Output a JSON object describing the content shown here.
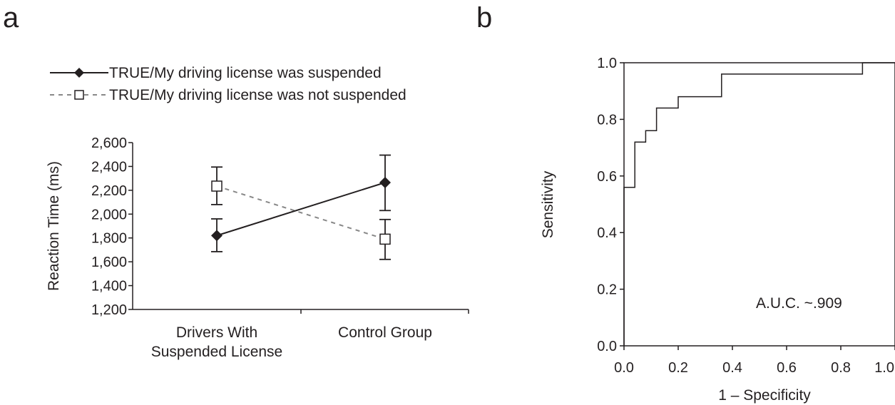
{
  "panels": {
    "a_label": "a",
    "b_label": "b"
  },
  "chart_data": [
    {
      "type": "line",
      "panel": "a",
      "categories": [
        "Drivers With\nSuspended License",
        "Control Group"
      ],
      "category_lines": [
        [
          "Drivers With",
          "Suspended License"
        ],
        [
          "Control Group"
        ]
      ],
      "ylabel": "Reaction Time (ms)",
      "xlabel": "",
      "ylim": [
        1200,
        2600
      ],
      "yticks": [
        1200,
        1400,
        1600,
        1800,
        2000,
        2200,
        2400,
        2600
      ],
      "ytick_labels": [
        "1,200",
        "1,400",
        "1,600",
        "1,800",
        "2,000",
        "2,200",
        "2,400",
        "2,600"
      ],
      "legend_position": "top",
      "series": [
        {
          "name": "TRUE/My driving license was suspended",
          "marker": "filled-diamond",
          "line": "solid",
          "color": "#231f20",
          "values": [
            1820,
            2265
          ],
          "err_low": [
            1685,
            2030
          ],
          "err_high": [
            1960,
            2495
          ]
        },
        {
          "name": "TRUE/My driving license was not suspended",
          "marker": "open-square",
          "line": "dashed",
          "color": "#888888",
          "values": [
            2235,
            1790
          ],
          "err_low": [
            2080,
            1620
          ],
          "err_high": [
            2395,
            1955
          ]
        }
      ]
    },
    {
      "type": "line",
      "panel": "b",
      "xlabel": "1 – Specificity",
      "ylabel": "Sensitivity",
      "xlim": [
        0,
        1
      ],
      "ylim": [
        0,
        1
      ],
      "xticks": [
        0,
        0.2,
        0.4,
        0.6,
        0.8,
        1.0
      ],
      "xtick_labels": [
        "0.0",
        "0.2",
        "0.4",
        "0.6",
        "0.8",
        "1.0"
      ],
      "yticks": [
        0,
        0.2,
        0.4,
        0.6,
        0.8,
        1.0
      ],
      "ytick_labels": [
        "0.0",
        "0.2",
        "0.4",
        "0.6",
        "0.8",
        "1.0"
      ],
      "annotation": "A.U.C. ~.909",
      "roc_x": [
        0,
        0,
        0.04,
        0.04,
        0.08,
        0.08,
        0.12,
        0.12,
        0.2,
        0.2,
        0.36,
        0.36,
        0.88,
        0.88,
        1.0
      ],
      "roc_y": [
        0,
        0.56,
        0.56,
        0.72,
        0.72,
        0.76,
        0.76,
        0.84,
        0.84,
        0.88,
        0.88,
        0.96,
        0.96,
        1.0,
        1.0
      ]
    }
  ]
}
